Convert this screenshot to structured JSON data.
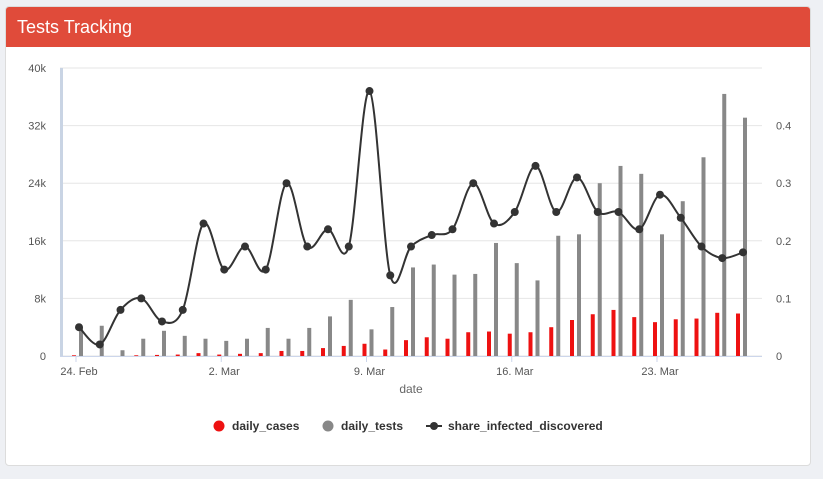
{
  "card": {
    "title": "Tests Tracking"
  },
  "colors": {
    "header": "#e04b3a",
    "cases": "#ee1111",
    "tests": "#888888",
    "share": "#333333",
    "grid": "#e6e6e6",
    "navigator": "#c9d4e4"
  },
  "chart_data": {
    "type": "bar",
    "xlabel": "date",
    "x": [
      "2020-02-24",
      "2020-02-25",
      "2020-02-26",
      "2020-02-27",
      "2020-02-28",
      "2020-02-29",
      "2020-03-01",
      "2020-03-02",
      "2020-03-03",
      "2020-03-04",
      "2020-03-05",
      "2020-03-06",
      "2020-03-07",
      "2020-03-08",
      "2020-03-09",
      "2020-03-10",
      "2020-03-11",
      "2020-03-12",
      "2020-03-13",
      "2020-03-14",
      "2020-03-15",
      "2020-03-16",
      "2020-03-17",
      "2020-03-18",
      "2020-03-19",
      "2020-03-20",
      "2020-03-21",
      "2020-03-22",
      "2020-03-23",
      "2020-03-24",
      "2020-03-25",
      "2020-03-26",
      "2020-03-27"
    ],
    "x_ticks": [
      {
        "date": "2020-02-24",
        "label": "24. Feb"
      },
      {
        "date": "2020-03-02",
        "label": "2. Mar"
      },
      {
        "date": "2020-03-09",
        "label": "9. Mar"
      },
      {
        "date": "2020-03-16",
        "label": "16. Mar"
      },
      {
        "date": "2020-03-23",
        "label": "23. Mar"
      }
    ],
    "y_left": {
      "ticks": [
        0,
        8000,
        16000,
        24000,
        32000,
        40000
      ],
      "tick_labels": [
        "0",
        "8k",
        "16k",
        "24k",
        "32k",
        "40k"
      ],
      "ylim": [
        0,
        40000
      ]
    },
    "y_right": {
      "ticks": [
        0,
        0.1,
        0.2,
        0.3,
        0.4
      ],
      "tick_labels": [
        "0",
        "0.1",
        "0.2",
        "0.3",
        "0.4"
      ],
      "ylim": [
        0,
        0.5
      ]
    },
    "grid": true,
    "legend_position": "bottom-center",
    "series": [
      {
        "name": "daily_cases",
        "type": "bar",
        "axis": "left",
        "values": [
          100,
          0,
          0,
          100,
          150,
          200,
          400,
          200,
          300,
          400,
          700,
          700,
          1100,
          1400,
          1700,
          900,
          2200,
          2600,
          2400,
          3300,
          3400,
          3100,
          3300,
          4000,
          5000,
          5800,
          6400,
          5400,
          4700,
          5100,
          5200,
          6000,
          5900
        ]
      },
      {
        "name": "daily_tests",
        "type": "bar",
        "axis": "left",
        "values": [
          4100,
          4200,
          800,
          2400,
          3500,
          2800,
          2400,
          2100,
          2400,
          3900,
          2400,
          3900,
          5500,
          7800,
          3700,
          6800,
          12300,
          12700,
          11300,
          11400,
          15700,
          12900,
          10500,
          16700,
          16900,
          24000,
          26400,
          25300,
          16900,
          21500,
          27600,
          36400,
          33100
        ]
      },
      {
        "name": "share_infected_discovered",
        "type": "line",
        "axis": "right",
        "values": [
          0.05,
          0.02,
          0.08,
          0.1,
          0.06,
          0.08,
          0.23,
          0.15,
          0.19,
          0.15,
          0.3,
          0.19,
          0.22,
          0.19,
          0.46,
          0.14,
          0.19,
          0.21,
          0.22,
          0.3,
          0.23,
          0.25,
          0.33,
          0.25,
          0.31,
          0.25,
          0.25,
          0.22,
          0.28,
          0.24,
          0.19,
          0.17,
          0.18
        ]
      }
    ]
  }
}
